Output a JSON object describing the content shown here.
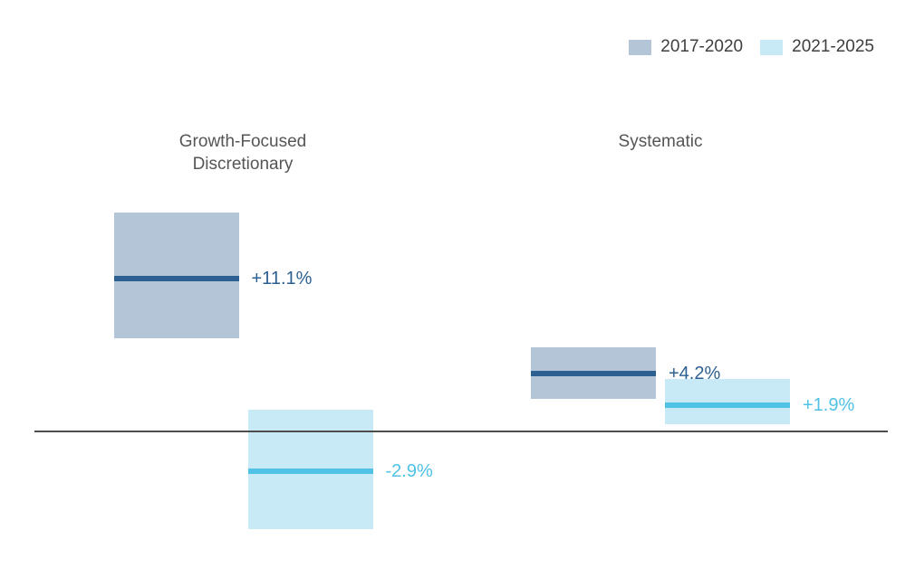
{
  "legend": [
    {
      "label": "2017-2020",
      "color": "#b3c5d7"
    },
    {
      "label": "2021-2025",
      "color": "#c8eaf6"
    }
  ],
  "chart_data": {
    "type": "bar",
    "subtype": "floating-range-bars-with-mean-line",
    "title": "",
    "xlabel": "",
    "ylabel": "",
    "units": "%",
    "baseline_value": 0,
    "grid": false,
    "legend_position": "top-right",
    "groups": [
      "Growth-Focused Discretionary",
      "Systematic"
    ],
    "series": [
      {
        "name": "2017-2020",
        "fill": "#b3c5d7",
        "line_color": "#2c6091",
        "points": [
          {
            "group": "Growth-Focused Discretionary",
            "mean": 11.1,
            "label": "+11.1%",
            "range_high": 15.9,
            "range_low": 6.8
          },
          {
            "group": "Systematic",
            "mean": 4.2,
            "label": "+4.2%",
            "range_high": 6.1,
            "range_low": 2.4
          }
        ]
      },
      {
        "name": "2021-2025",
        "fill": "#c8eaf6",
        "line_color": "#4fc2e6",
        "points": [
          {
            "group": "Growth-Focused Discretionary",
            "mean": -2.9,
            "label": "-2.9%",
            "range_high": 1.6,
            "range_low": -7.1
          },
          {
            "group": "Systematic",
            "mean": 1.9,
            "label": "+1.9%",
            "range_high": 3.8,
            "range_low": 0.5
          }
        ]
      }
    ]
  }
}
